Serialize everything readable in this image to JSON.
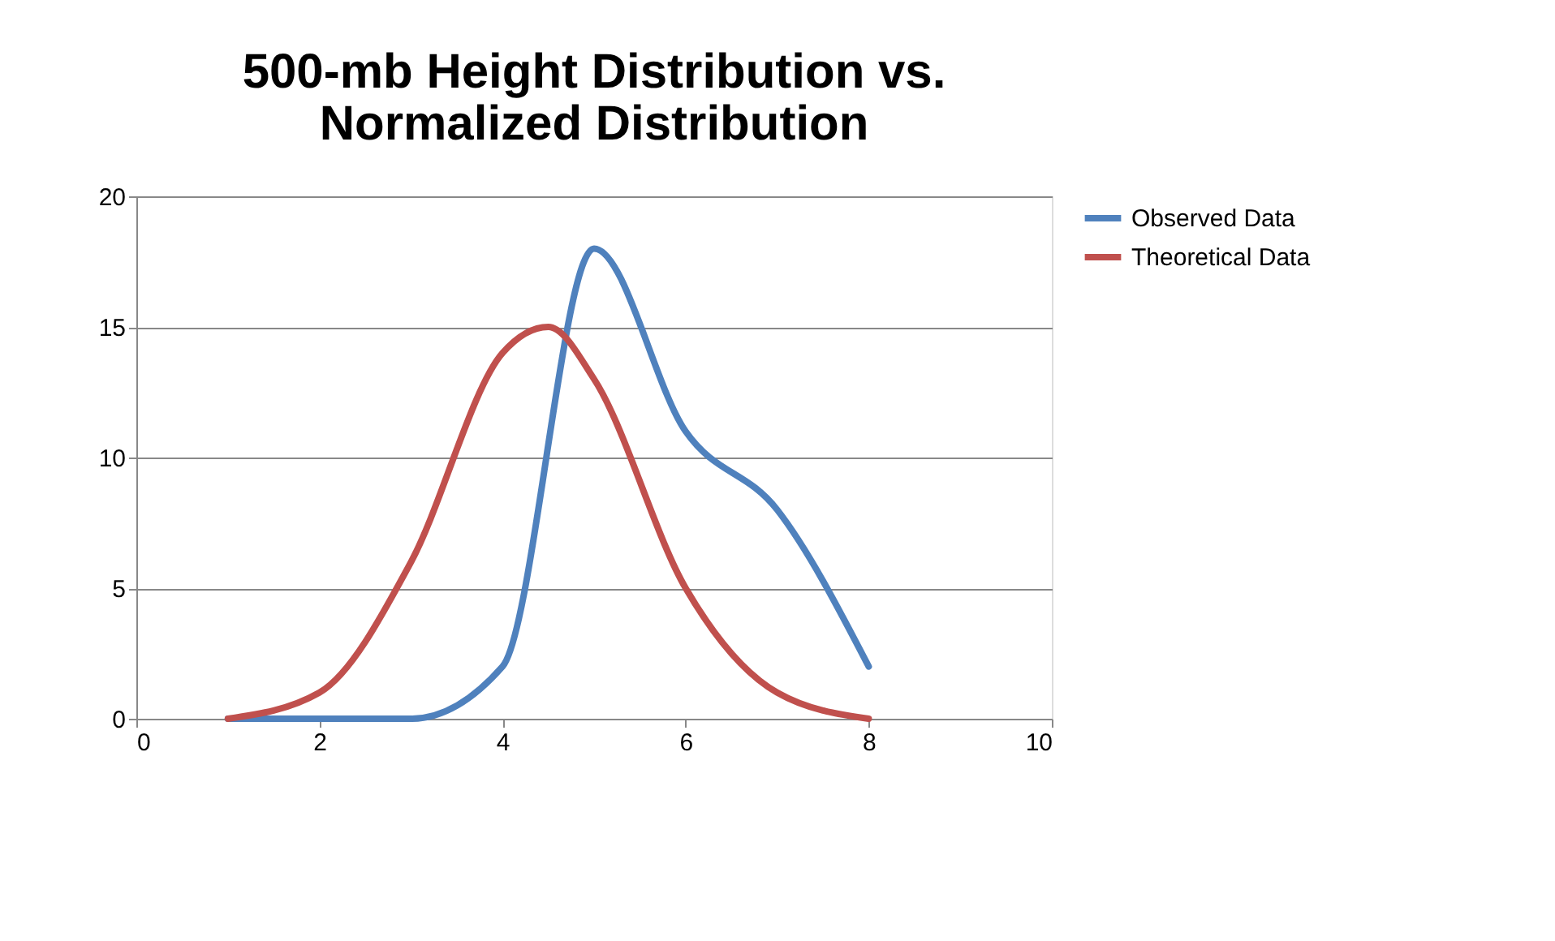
{
  "chart_data": {
    "type": "line",
    "title": "500-mb Height Distribution vs.\nNormalized Distribution",
    "series": [
      {
        "name": "Observed Data",
        "color": "#4f81bd",
        "x": [
          1,
          2,
          3,
          4,
          5,
          6,
          7,
          8
        ],
        "values": [
          0,
          0,
          0,
          2,
          18,
          11,
          8,
          2
        ]
      },
      {
        "name": "Theoretical Data",
        "color": "#c0504d",
        "x": [
          1,
          2,
          3,
          4,
          4.5,
          5,
          6,
          7,
          8
        ],
        "values": [
          0,
          1,
          6,
          14,
          15,
          13,
          5,
          1,
          0
        ]
      }
    ],
    "xlim": [
      0,
      10
    ],
    "xticks": [
      0,
      2,
      4,
      6,
      8,
      10
    ],
    "ylim": [
      0,
      20
    ],
    "yticks": [
      0,
      5,
      10,
      15,
      20
    ],
    "grid": "y",
    "legend": "right",
    "marker": "none",
    "line_style": "solid"
  }
}
